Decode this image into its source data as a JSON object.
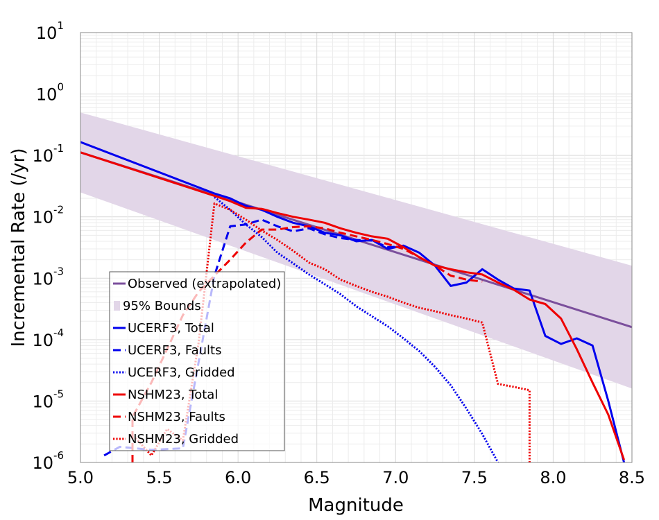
{
  "chart_data": {
    "type": "line",
    "xlabel": "Magnitude",
    "ylabel": "Incremental Rate (/yr)",
    "xlim": [
      5.0,
      8.5
    ],
    "ylim": [
      1e-06,
      10
    ],
    "yscale": "log",
    "grid": true,
    "legend_position": "lower-left",
    "x_ticks": [
      "5.0",
      "5.5",
      "6.0",
      "6.5",
      "7.0",
      "7.5",
      "8.0",
      "8.5"
    ],
    "x_tick_values": [
      5.0,
      5.5,
      6.0,
      6.5,
      7.0,
      7.5,
      8.0,
      8.5
    ],
    "y_ticks": [
      {
        "base": "10",
        "exp": "-6",
        "value": 1e-06
      },
      {
        "base": "10",
        "exp": "-5",
        "value": 1e-05
      },
      {
        "base": "10",
        "exp": "-4",
        "value": 0.0001
      },
      {
        "base": "10",
        "exp": "-3",
        "value": 0.001
      },
      {
        "base": "10",
        "exp": "-2",
        "value": 0.01
      },
      {
        "base": "10",
        "exp": "-1",
        "value": 0.1
      },
      {
        "base": "10",
        "exp": "0",
        "value": 1
      },
      {
        "base": "10",
        "exp": "1",
        "value": 10
      }
    ],
    "bounds": {
      "name": "95% Bounds",
      "color": "#e2d6e8",
      "x": [
        5.0,
        8.5
      ],
      "lower": [
        0.025,
        1.6e-05
      ],
      "upper": [
        0.5,
        0.0016
      ]
    },
    "series": [
      {
        "name": "Observed (extrapolated)",
        "color": "#7b4f9c",
        "dash": "solid",
        "x": [
          5.0,
          8.5
        ],
        "y": [
          0.112,
          0.00016
        ]
      },
      {
        "name": "UCERF3, Total",
        "color": "#0000ee",
        "dash": "solid",
        "x": [
          5.0,
          5.85,
          5.95,
          6.05,
          6.15,
          6.25,
          6.35,
          6.45,
          6.55,
          6.65,
          6.75,
          6.85,
          6.95,
          7.05,
          7.15,
          7.25,
          7.35,
          7.45,
          7.55,
          7.65,
          7.75,
          7.85,
          7.95,
          8.05,
          8.15,
          8.25,
          8.35,
          8.45
        ],
        "y": [
          0.165,
          0.024,
          0.02,
          0.015,
          0.013,
          0.01,
          0.008,
          0.007,
          0.0055,
          0.005,
          0.004,
          0.0042,
          0.003,
          0.0034,
          0.0026,
          0.0016,
          0.00075,
          0.00085,
          0.0014,
          0.00095,
          0.00068,
          0.00063,
          0.000115,
          8.5e-05,
          0.000105,
          8e-05,
          1e-05,
          1e-06
        ]
      },
      {
        "name": "UCERF3, Faults",
        "color": "#0000ee",
        "dash": "dashed",
        "x": [
          5.15,
          5.25,
          5.45,
          5.65,
          5.85,
          5.95,
          6.05,
          6.15,
          6.25,
          6.35,
          6.45,
          6.55,
          6.65,
          6.75,
          6.85,
          6.95,
          7.05
        ],
        "y": [
          1.3e-06,
          1.8e-06,
          1.6e-06,
          1.7e-06,
          0.0011,
          0.007,
          0.0075,
          0.009,
          0.007,
          0.0058,
          0.0065,
          0.0052,
          0.0045,
          0.0042,
          0.0041,
          0.0032,
          0.0033
        ]
      },
      {
        "name": "UCERF3, Gridded",
        "color": "#0000ee",
        "dash": "dotted",
        "x": [
          5.85,
          5.95,
          6.05,
          6.15,
          6.25,
          6.35,
          6.45,
          6.55,
          6.65,
          6.75,
          6.85,
          6.95,
          7.05,
          7.15,
          7.25,
          7.35,
          7.45,
          7.55,
          7.65
        ],
        "y": [
          0.021,
          0.013,
          0.0075,
          0.0047,
          0.0026,
          0.00175,
          0.00115,
          0.0008,
          0.00055,
          0.00035,
          0.00024,
          0.000165,
          0.000105,
          6.5e-05,
          3.6e-05,
          1.8e-05,
          7.5e-06,
          2.9e-06,
          1e-06
        ]
      },
      {
        "name": "NSHM23, Total",
        "color": "#ee0000",
        "dash": "solid",
        "x": [
          5.0,
          5.85,
          5.95,
          6.05,
          6.15,
          6.25,
          6.35,
          6.45,
          6.55,
          6.65,
          6.75,
          6.85,
          6.95,
          7.05,
          7.15,
          7.25,
          7.35,
          7.45,
          7.55,
          7.65,
          7.75,
          7.85,
          7.95,
          8.05,
          8.15,
          8.25,
          8.35,
          8.45
        ],
        "y": [
          0.112,
          0.022,
          0.018,
          0.014,
          0.0135,
          0.0115,
          0.01,
          0.009,
          0.008,
          0.0065,
          0.0055,
          0.0048,
          0.0044,
          0.0032,
          0.0022,
          0.0016,
          0.0014,
          0.00125,
          0.00115,
          0.00085,
          0.00065,
          0.00045,
          0.00038,
          0.00022,
          7e-05,
          2e-05,
          6e-06,
          1.1e-06
        ]
      },
      {
        "name": "NSHM23, Faults",
        "color": "#ee0000",
        "dash": "dashed",
        "x": [
          5.33,
          5.33,
          5.45,
          5.55,
          5.65,
          5.75,
          5.85,
          5.95,
          6.05,
          6.15,
          6.25,
          6.35,
          6.45,
          6.55,
          6.65,
          6.75,
          6.85,
          6.95,
          7.05,
          7.15,
          7.25,
          7.35,
          7.45,
          7.55
        ],
        "y": [
          1e-06,
          5.5e-06,
          2e-05,
          7e-05,
          0.00025,
          0.0006,
          0.0011,
          0.002,
          0.0038,
          0.0062,
          0.0062,
          0.0068,
          0.007,
          0.0065,
          0.0055,
          0.0048,
          0.0042,
          0.0036,
          0.003,
          0.0022,
          0.0016,
          0.0011,
          0.00095,
          0.00088
        ]
      },
      {
        "name": "NSHM23, Gridded",
        "color": "#ee0000",
        "dash": "dotted",
        "x": [
          5.35,
          5.45,
          5.55,
          5.65,
          5.75,
          5.85,
          5.95,
          6.05,
          6.15,
          6.25,
          6.35,
          6.45,
          6.55,
          6.65,
          6.75,
          6.85,
          6.95,
          7.05,
          7.15,
          7.25,
          7.35,
          7.45,
          7.55,
          7.65,
          7.75,
          7.85,
          7.85
        ],
        "y": [
          2.5e-06,
          1.3e-06,
          3.5e-06,
          2.3e-06,
          9e-05,
          0.0165,
          0.013,
          0.009,
          0.006,
          0.0042,
          0.0028,
          0.0018,
          0.0014,
          0.00095,
          0.00075,
          0.0006,
          0.0005,
          0.0004,
          0.00033,
          0.00029,
          0.00025,
          0.00022,
          0.00019,
          1.9e-05,
          1.7e-05,
          1.5e-05,
          1e-06
        ]
      }
    ]
  }
}
